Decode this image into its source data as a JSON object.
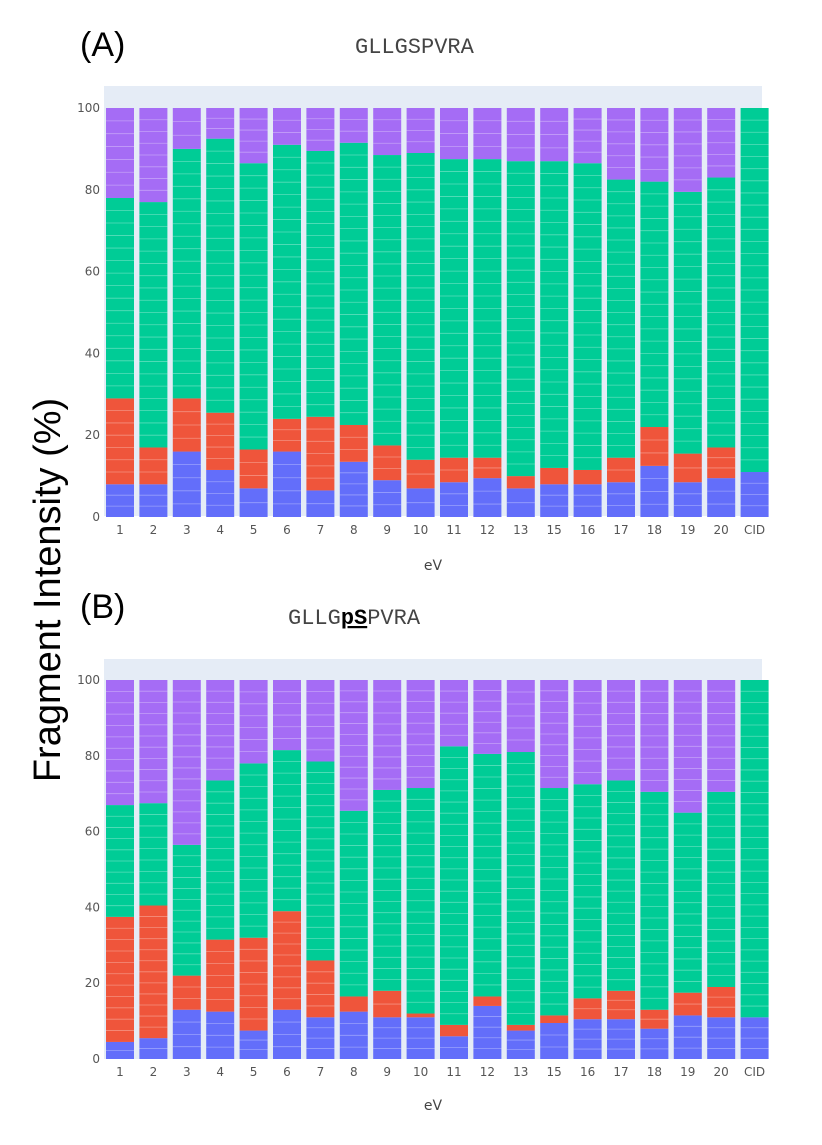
{
  "figure": {
    "ylabel": "Fragment Intensity (%)"
  },
  "colors": {
    "purple": "#a56cf5",
    "green": "#00cc96",
    "red": "#ef553b",
    "blue": "#636efa",
    "plot_bg": "#e5ecf6"
  },
  "chart_data": [
    {
      "type": "bar",
      "panel": "(A)",
      "title": "GLLGSPVRA",
      "title_parts": [
        "GLLGSPVRA"
      ],
      "xlabel": "eV",
      "ylabel": "",
      "ylim": [
        0,
        100
      ],
      "yticks": [
        0,
        20,
        40,
        60,
        80,
        100
      ],
      "stacked": true,
      "categories": [
        "1",
        "2",
        "3",
        "4",
        "5",
        "6",
        "7",
        "8",
        "9",
        "10",
        "11",
        "12",
        "13",
        "15",
        "16",
        "17",
        "18",
        "19",
        "20",
        "CID"
      ],
      "series": [
        {
          "color": "blue",
          "values": [
            8,
            8,
            16,
            11.5,
            7,
            16,
            6.5,
            13.5,
            9,
            7,
            8.5,
            9.5,
            7,
            8,
            8,
            8.5,
            12.5,
            8.5,
            9.5,
            11
          ]
        },
        {
          "color": "red",
          "values": [
            21,
            9,
            13,
            14,
            9.5,
            8,
            18,
            9,
            8.5,
            7,
            6,
            5,
            3,
            4,
            3.5,
            6,
            9.5,
            7,
            7.5,
            0
          ]
        },
        {
          "color": "green",
          "values": [
            49,
            60,
            61,
            67,
            70,
            67,
            65,
            69,
            71,
            75,
            73,
            73,
            77,
            75,
            75,
            68,
            60,
            64,
            66,
            89
          ]
        },
        {
          "color": "purple",
          "values": [
            22,
            23,
            10,
            7.5,
            13.5,
            9,
            10.5,
            8.5,
            11.5,
            11,
            12.5,
            12.5,
            13,
            13,
            13.5,
            17.5,
            18,
            20.5,
            17,
            0
          ]
        }
      ]
    },
    {
      "type": "bar",
      "panel": "(B)",
      "title": "GLLGpSPVRA",
      "title_parts": [
        "GLLG",
        "pS",
        "PVRA"
      ],
      "xlabel": "eV",
      "ylabel": "",
      "ylim": [
        0,
        100
      ],
      "yticks": [
        0,
        20,
        40,
        60,
        80,
        100
      ],
      "stacked": true,
      "categories": [
        "1",
        "2",
        "3",
        "4",
        "5",
        "6",
        "7",
        "8",
        "9",
        "10",
        "11",
        "12",
        "13",
        "15",
        "16",
        "17",
        "18",
        "19",
        "20",
        "CID"
      ],
      "series": [
        {
          "color": "blue",
          "values": [
            4.5,
            5.5,
            13,
            12.5,
            7.5,
            13,
            11,
            12.5,
            11,
            11,
            6,
            14,
            7.5,
            9.5,
            10.5,
            10.5,
            8,
            11.5,
            11,
            11
          ]
        },
        {
          "color": "red",
          "values": [
            33,
            35,
            9,
            19,
            24.5,
            26,
            15,
            4,
            7,
            1,
            3,
            2.5,
            1.5,
            2,
            5.5,
            7.5,
            5,
            6,
            8,
            0
          ]
        },
        {
          "color": "green",
          "values": [
            29.5,
            27,
            34.5,
            42,
            46,
            42.5,
            52.5,
            49,
            53,
            59.5,
            73.5,
            64,
            72,
            60,
            56.5,
            55.5,
            57.5,
            47.5,
            51.5,
            89
          ]
        },
        {
          "color": "purple",
          "values": [
            33,
            32.5,
            43.5,
            26.5,
            22,
            18.5,
            21.5,
            34.5,
            29,
            28.5,
            17.5,
            19.5,
            19,
            28.5,
            27.5,
            26.5,
            29.5,
            35,
            29.5,
            0
          ]
        }
      ]
    }
  ]
}
